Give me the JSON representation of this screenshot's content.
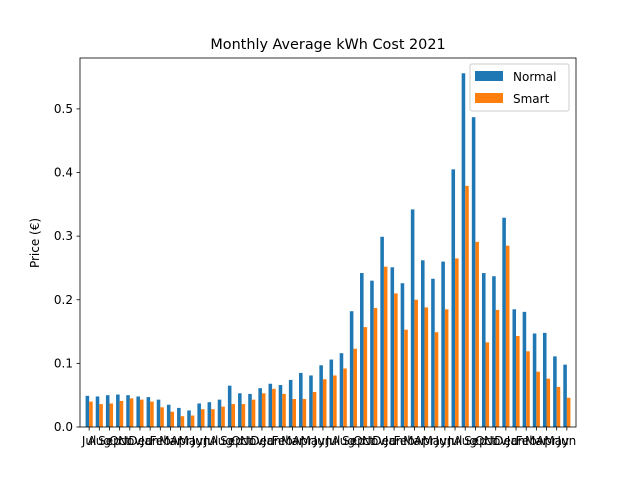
{
  "chart_data": {
    "type": "bar",
    "title": "Monthly Average kWh Cost 2021",
    "xlabel": "",
    "ylabel": "Price (€)",
    "ylim": [
      0,
      0.58
    ],
    "yticks": [
      0.0,
      0.1,
      0.2,
      0.3,
      0.4,
      0.5
    ],
    "ytick_labels": [
      "0.0",
      "0.1",
      "0.2",
      "0.3",
      "0.4",
      "0.5"
    ],
    "legend_position": "top-right",
    "grid": false,
    "categories": [
      "Jul",
      "Aug",
      "Sep",
      "Oct",
      "Nov",
      "Dec",
      "Jan",
      "Feb",
      "Mar",
      "Apr",
      "May",
      "Jun",
      "Jul",
      "Aug",
      "Sep",
      "Oct",
      "Nov",
      "Dec",
      "Jan",
      "Feb",
      "Mar",
      "Apr",
      "May",
      "Jun",
      "Jul",
      "Aug",
      "Sep",
      "Oct",
      "Nov",
      "Dec",
      "Jan",
      "Feb",
      "Mar",
      "Apr",
      "May",
      "Jun",
      "Jul",
      "Aug",
      "Sep",
      "Oct",
      "Nov",
      "Dec",
      "Jan",
      "Feb",
      "Mar",
      "Apr",
      "May",
      "Jun"
    ],
    "series": [
      {
        "name": "Normal",
        "color": "#1f77b4",
        "values": [
          0.049,
          0.048,
          0.05,
          0.051,
          0.05,
          0.048,
          0.047,
          0.043,
          0.035,
          0.03,
          0.026,
          0.037,
          0.039,
          0.043,
          0.065,
          0.053,
          0.052,
          0.061,
          0.068,
          0.066,
          0.074,
          0.085,
          0.081,
          0.097,
          0.106,
          0.116,
          0.182,
          0.242,
          0.23,
          0.299,
          0.251,
          0.226,
          0.342,
          0.262,
          0.233,
          0.26,
          0.405,
          0.556,
          0.487,
          0.242,
          0.237,
          0.329,
          0.185,
          0.181,
          0.147,
          0.148,
          0.111,
          0.098
        ]
      },
      {
        "name": "Smart",
        "color": "#ff7f0e",
        "values": [
          0.04,
          0.036,
          0.037,
          0.041,
          0.045,
          0.043,
          0.04,
          0.031,
          0.024,
          0.017,
          0.018,
          0.028,
          0.028,
          0.032,
          0.036,
          0.036,
          0.043,
          0.053,
          0.06,
          0.052,
          0.044,
          0.044,
          0.055,
          0.075,
          0.081,
          0.092,
          0.123,
          0.157,
          0.187,
          0.252,
          0.21,
          0.153,
          0.2,
          0.188,
          0.149,
          0.185,
          0.265,
          0.379,
          0.291,
          0.133,
          0.184,
          0.285,
          0.143,
          0.119,
          0.087,
          0.076,
          0.063,
          0.046
        ]
      }
    ]
  }
}
